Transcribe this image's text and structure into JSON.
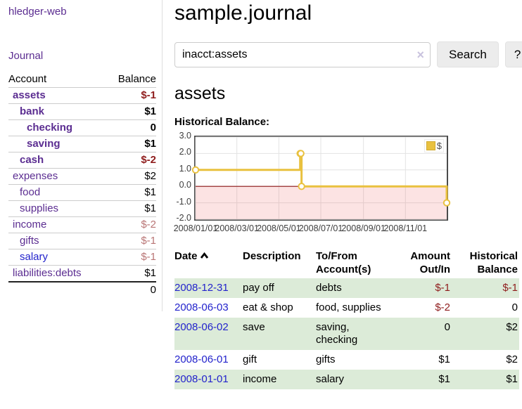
{
  "palette": {
    "purple_link": "#5b2d91",
    "blue_link": "#2323cc",
    "negative_strong": "#8f1d1d",
    "negative_muted": "#b97575",
    "row_stripe_green": "#dcebd8",
    "chart_line_gold": "#e9c13f",
    "chart_negative_fill": "#f5dcdc",
    "chart_zero_line": "#8c1717"
  },
  "sidebar": {
    "brand": "hledger-web",
    "nav_journal": "Journal",
    "table": {
      "col_account": "Account",
      "col_balance": "Balance",
      "rows": [
        {
          "name": "assets",
          "balance": "$-1",
          "indent": 0,
          "bold": true,
          "neg": true
        },
        {
          "name": "bank",
          "balance": "$1",
          "indent": 1,
          "bold": true,
          "neg": false
        },
        {
          "name": "checking",
          "balance": "0",
          "indent": 2,
          "bold": true,
          "neg": false
        },
        {
          "name": "saving",
          "balance": "$1",
          "indent": 2,
          "bold": true,
          "neg": false
        },
        {
          "name": "cash",
          "balance": "$-2",
          "indent": 1,
          "bold": true,
          "neg": true
        },
        {
          "name": "expenses",
          "balance": "$2",
          "indent": 0,
          "bold": false,
          "neg": false
        },
        {
          "name": "food",
          "balance": "$1",
          "indent": 1,
          "bold": false,
          "neg": false
        },
        {
          "name": "supplies",
          "balance": "$1",
          "indent": 1,
          "bold": false,
          "neg": false
        },
        {
          "name": "income",
          "balance": "$-2",
          "indent": 0,
          "bold": false,
          "neg": true
        },
        {
          "name": "gifts",
          "balance": "$-1",
          "indent": 1,
          "bold": false,
          "neg": true
        },
        {
          "name": "salary",
          "balance": "$-1",
          "indent": 1,
          "bold": false,
          "neg": true,
          "blue": true
        },
        {
          "name": "liabilities:debts",
          "balance": "$1",
          "indent": 0,
          "bold": false,
          "neg": false
        }
      ],
      "total": "0"
    }
  },
  "main": {
    "title": "sample.journal",
    "search": {
      "value": "inacct:assets",
      "clear_icon": "×",
      "search_button": "Search",
      "help_button": "?"
    },
    "account_heading": "assets",
    "section_label": "Historical Balance:"
  },
  "chart_data": {
    "type": "line",
    "step": true,
    "title": "Historical Balance:",
    "legend": "$",
    "legend_position": "top-right",
    "grid": true,
    "x_range": [
      "2008-01-01",
      "2008-12-31"
    ],
    "ylim": [
      -2,
      3
    ],
    "y_ticks": [
      "3.0",
      "2.0",
      "1.0",
      "0.0",
      "-1.0",
      "-2.0"
    ],
    "x_ticks": [
      "2008/01/01",
      "2008/03/01",
      "2008/05/01",
      "2008/07/01",
      "2008/09/01",
      "2008/11/01"
    ],
    "points": [
      {
        "date": "2008-01-01",
        "value": 1
      },
      {
        "date": "2008-06-01",
        "value": 2
      },
      {
        "date": "2008-06-02",
        "value": 2
      },
      {
        "date": "2008-06-03",
        "value": 0
      },
      {
        "date": "2008-12-31",
        "value": -1
      }
    ]
  },
  "register": {
    "headers": [
      {
        "label": "Date",
        "align": "left",
        "sorted": true
      },
      {
        "label": "Description",
        "align": "left"
      },
      {
        "label": "To/From Account(s)",
        "align": "left"
      },
      {
        "label": "Amount Out/In",
        "align": "right"
      },
      {
        "label": "Historical Balance",
        "align": "right"
      }
    ],
    "rows": [
      {
        "date": "2008-12-31",
        "description": "pay off",
        "accounts": "debts",
        "amount": "$-1",
        "balance": "$-1"
      },
      {
        "date": "2008-06-03",
        "description": "eat & shop",
        "accounts": "food, supplies",
        "amount": "$-2",
        "balance": "0"
      },
      {
        "date": "2008-06-02",
        "description": "save",
        "accounts": "saving, checking",
        "amount": "0",
        "balance": "$2"
      },
      {
        "date": "2008-06-01",
        "description": "gift",
        "accounts": "gifts",
        "amount": "$1",
        "balance": "$2"
      },
      {
        "date": "2008-01-01",
        "description": "income",
        "accounts": "salary",
        "amount": "$1",
        "balance": "$1"
      }
    ]
  }
}
